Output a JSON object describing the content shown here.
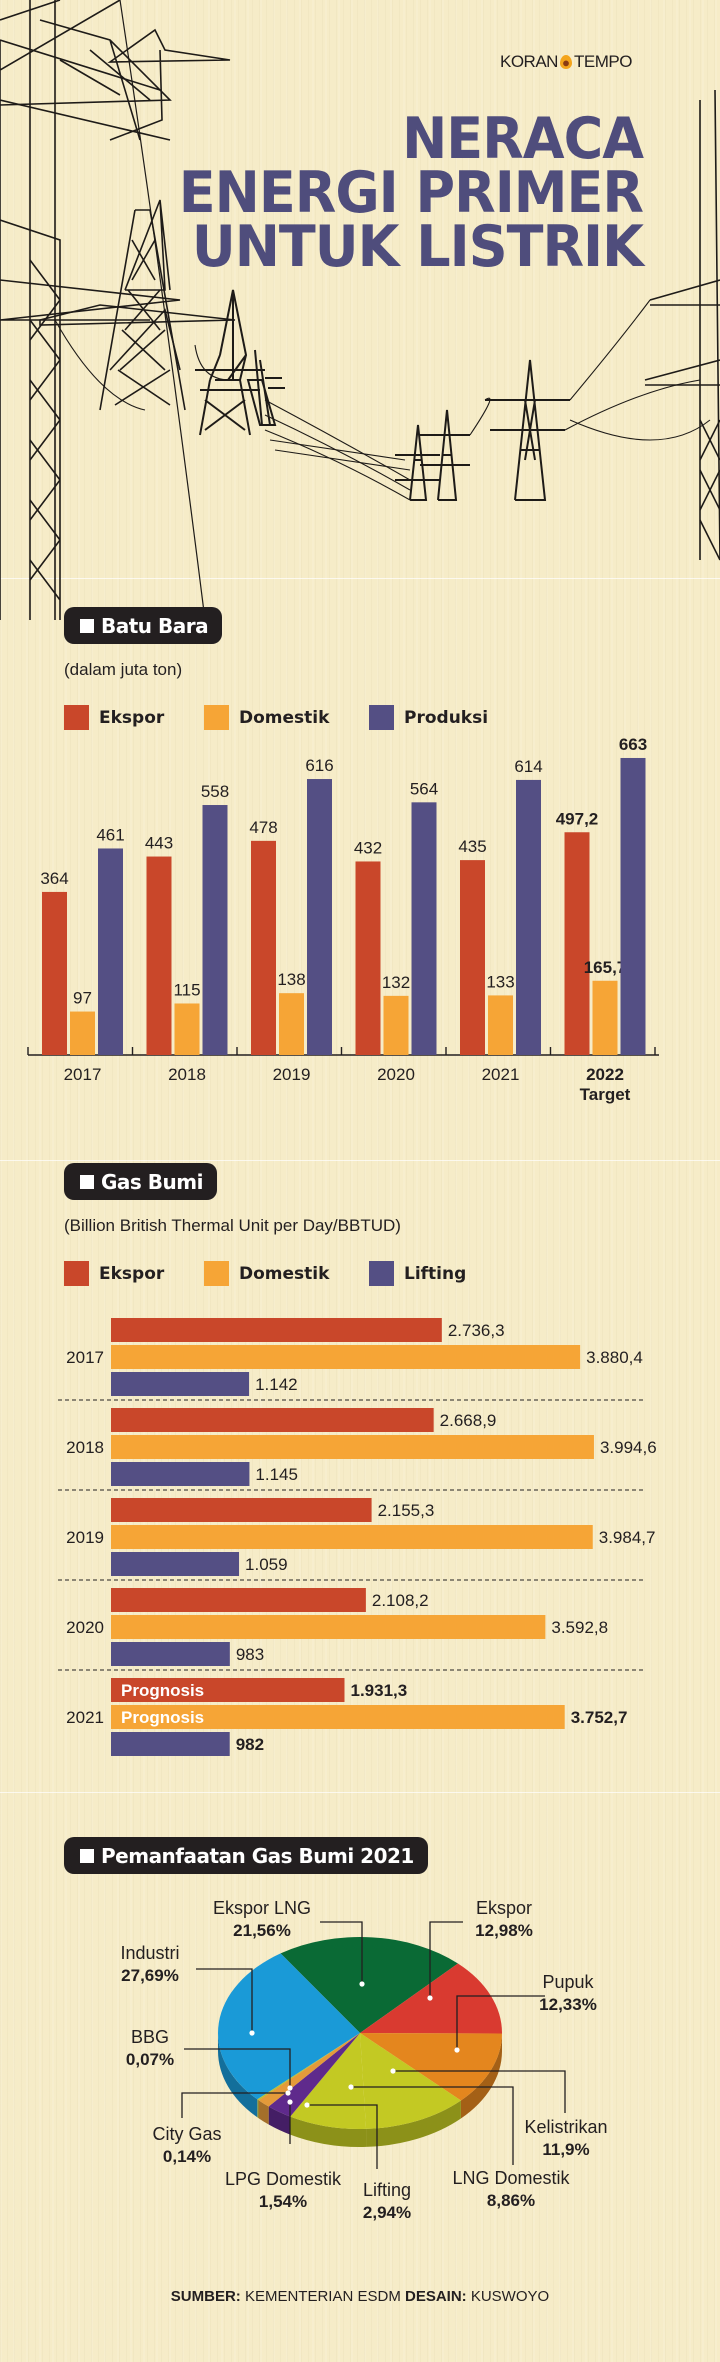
{
  "header": {
    "logo_text_left": "KORAN",
    "logo_text_right": "TEMPO",
    "title_lines": [
      "NERACA",
      "ENERGI PRIMER",
      "UNTUK LISTRIK"
    ]
  },
  "colors": {
    "ekspor": "#c9472a",
    "domestik": "#f6a536",
    "produksi": "#544f84",
    "title": "#4f4d7c",
    "pill": "#231f20",
    "background": "#f6ecc8"
  },
  "batu_bara": {
    "heading": "Batu Bara",
    "unit": "(dalam juta ton)",
    "legend": [
      "Ekspor",
      "Domestik",
      "Produksi"
    ]
  },
  "gas_bumi": {
    "heading": "Gas Bumi",
    "unit": "(Billion British Thermal Unit per Day/BBTUD)",
    "legend": [
      "Ekspor",
      "Domestik",
      "Lifting"
    ]
  },
  "pemanfaatan": {
    "heading": "Pemanfaatan Gas Bumi 2021"
  },
  "footer": {
    "source_label": "SUMBER:",
    "source_value": "KEMENTERIAN ESDM",
    "design_label": "DESAIN:",
    "design_value": "KUSWOYO"
  },
  "chart_data": [
    {
      "type": "bar",
      "title": "Batu Bara",
      "ylabel": "(dalam juta ton)",
      "categories": [
        "2017",
        "2018",
        "2019",
        "2020",
        "2021",
        "2022"
      ],
      "category_sublabels": [
        "",
        "",
        "",
        "",
        "",
        "Target"
      ],
      "series": [
        {
          "name": "Ekspor",
          "values": [
            364,
            443,
            478,
            432,
            435,
            497.2
          ],
          "labels": [
            "364",
            "443",
            "478",
            "432",
            "435",
            "497,2"
          ]
        },
        {
          "name": "Domestik",
          "values": [
            97,
            115,
            138,
            132,
            133,
            165.7
          ],
          "labels": [
            "97",
            "115",
            "138",
            "132",
            "133",
            "165,7"
          ]
        },
        {
          "name": "Produksi",
          "values": [
            461,
            558,
            616,
            564,
            614,
            663
          ],
          "labels": [
            "461",
            "558",
            "616",
            "564",
            "614",
            "663"
          ]
        }
      ],
      "ylim": [
        0,
        700
      ],
      "grid": false,
      "legend_position": "top-left"
    },
    {
      "type": "bar",
      "orientation": "horizontal",
      "title": "Gas Bumi",
      "xlabel": "(Billion British Thermal Unit per Day/BBTUD)",
      "categories": [
        "2017",
        "2018",
        "2019",
        "2020",
        "2021"
      ],
      "series": [
        {
          "name": "Ekspor",
          "values": [
            2736.3,
            2668.9,
            2155.3,
            2108.2,
            1931.3
          ],
          "labels": [
            "2.736,3",
            "2.668,9",
            "2.155,3",
            "2.108,2",
            "1.931,3"
          ]
        },
        {
          "name": "Domestik",
          "values": [
            3880.4,
            3994.6,
            3984.7,
            3592.8,
            3752.7
          ],
          "labels": [
            "3.880,4",
            "3.994,6",
            "3.984,7",
            "3.592,8",
            "3.752,7"
          ]
        },
        {
          "name": "Lifting",
          "values": [
            1142,
            1145,
            1059,
            983,
            982
          ],
          "labels": [
            "1.142",
            "1.145",
            "1.059",
            "983",
            "982"
          ]
        }
      ],
      "annotations": [
        {
          "category": "2021",
          "series": "Ekspor",
          "text": "Prognosis"
        },
        {
          "category": "2021",
          "series": "Domestik",
          "text": "Prognosis"
        }
      ],
      "xlim": [
        0,
        4200
      ],
      "grid": false,
      "legend_position": "top-left"
    },
    {
      "type": "pie",
      "title": "Pemanfaatan Gas Bumi 2021",
      "slices": [
        {
          "label": "Ekspor LNG",
          "value": 21.56,
          "text": "21,56%",
          "color": "#0a6a35"
        },
        {
          "label": "Ekspor",
          "value": 12.98,
          "text": "12,98%",
          "color": "#d93a30"
        },
        {
          "label": "Pupuk",
          "value": 12.33,
          "text": "12,33%",
          "color": "#e4861e"
        },
        {
          "label": "Kelistrikan",
          "value": 11.9,
          "text": "11,9%",
          "color": "#c3c923"
        },
        {
          "label": "LNG Domestik",
          "value": 8.86,
          "text": "8,86%",
          "color": "#c3c923"
        },
        {
          "label": "Lifting",
          "value": 2.94,
          "text": "2,94%",
          "color": "#5f2a8c"
        },
        {
          "label": "LPG Domestik",
          "value": 1.54,
          "text": "1,54%",
          "color": "#e49a3a"
        },
        {
          "label": "City Gas",
          "value": 0.14,
          "text": "0,14%",
          "color": "#b4bd2a"
        },
        {
          "label": "BBG",
          "value": 0.07,
          "text": "0,07%",
          "color": "#b4bd2a"
        },
        {
          "label": "Industri",
          "value": 27.69,
          "text": "27,69%",
          "color": "#1a9ad7"
        }
      ]
    }
  ]
}
